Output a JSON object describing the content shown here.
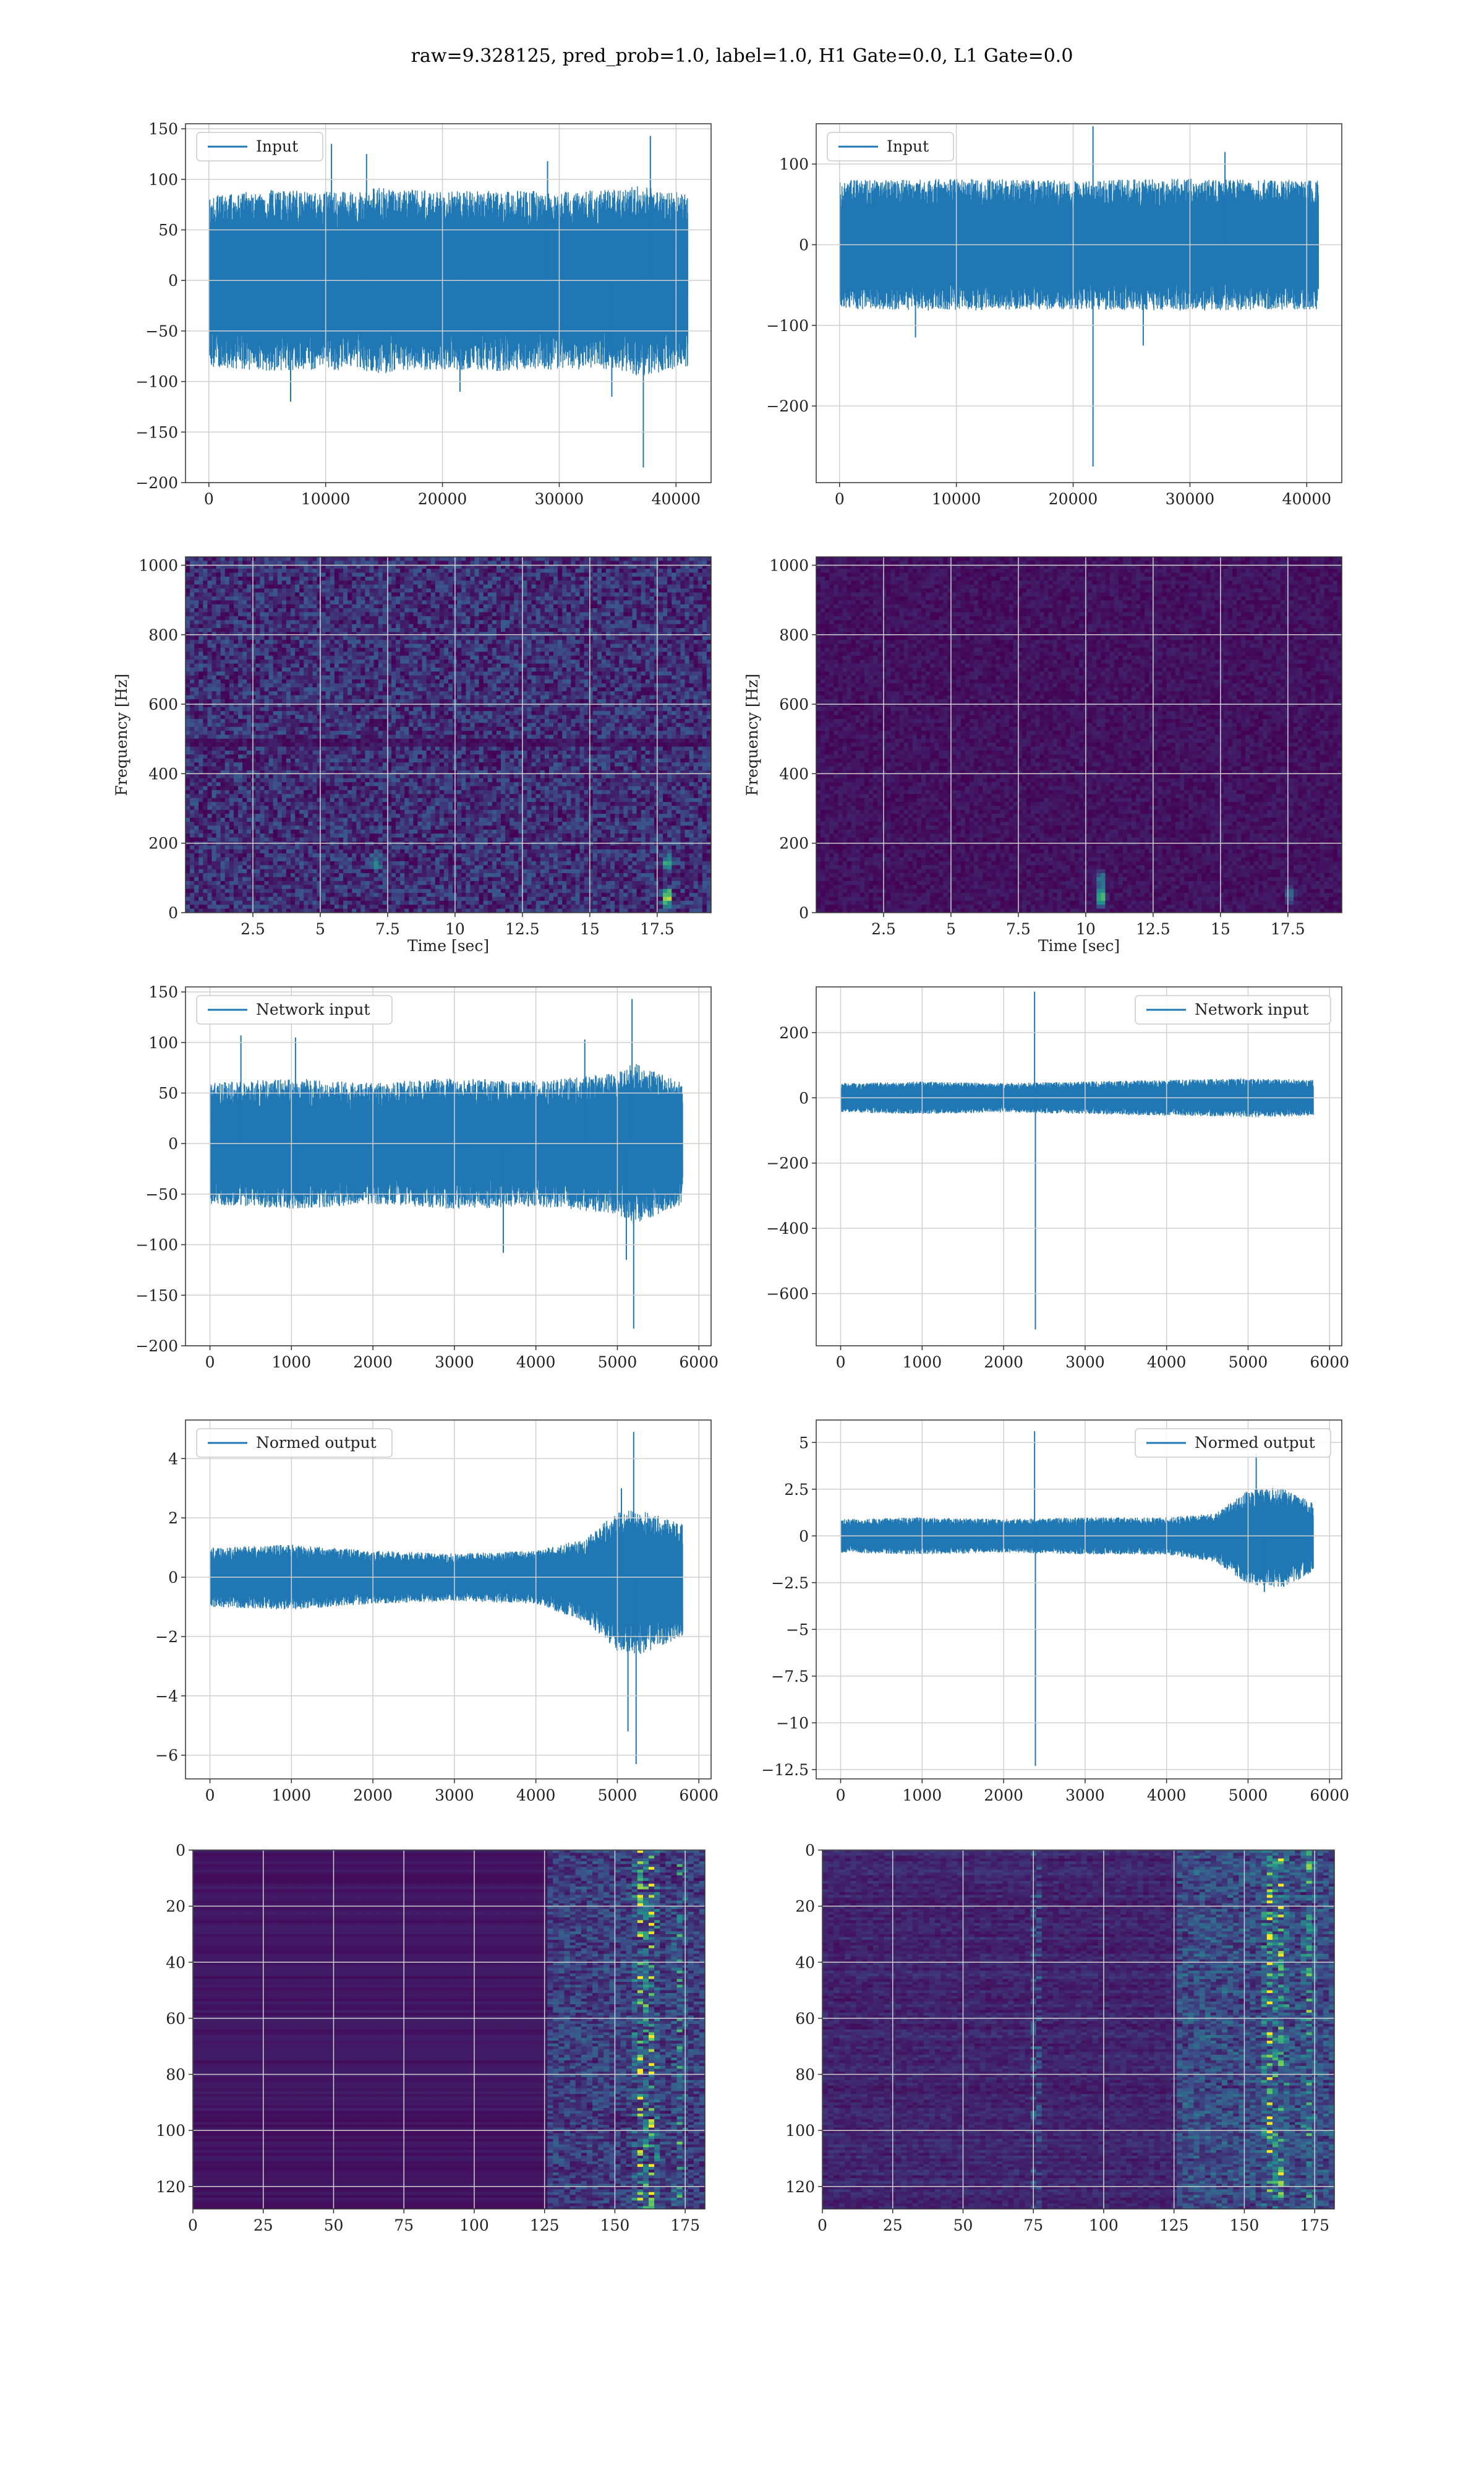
{
  "suptitle": "raw=9.328125, pred_prob=1.0, label=1.0, H1 Gate=0.0, L1 Gate=0.0",
  "colors": {
    "line": "#1f77b4",
    "grid": "#d0d0d0",
    "viridis_low": "#440154",
    "viridis_mid": "#21918c",
    "viridis_high": "#fde725"
  },
  "chart_data": [
    {
      "type": "line",
      "panel": "left-row1",
      "legend": "Input",
      "legend_loc": "upper left",
      "grid": true,
      "xlim": [
        -2000,
        43000
      ],
      "ylim": [
        -200,
        155
      ],
      "xticks": [
        0,
        10000,
        20000,
        30000,
        40000
      ],
      "yticks": [
        -200,
        -150,
        -100,
        -50,
        0,
        50,
        100,
        150
      ],
      "n_samples": 40960,
      "envelope": {
        "x": [
          0,
          5000,
          10000,
          15000,
          20000,
          25000,
          30000,
          35000,
          37000,
          41000
        ],
        "upper": [
          85,
          90,
          88,
          92,
          88,
          90,
          88,
          90,
          95,
          85
        ],
        "lower": [
          -85,
          -90,
          -88,
          -92,
          -88,
          -90,
          -88,
          -90,
          -95,
          -85
        ]
      },
      "spikes": [
        {
          "x": 10500,
          "y": 135
        },
        {
          "x": 13500,
          "y": 125
        },
        {
          "x": 29000,
          "y": 118
        },
        {
          "x": 37800,
          "y": 143
        },
        {
          "x": 37200,
          "y": -185
        },
        {
          "x": 7000,
          "y": -120
        },
        {
          "x": 21500,
          "y": -110
        },
        {
          "x": 34500,
          "y": -115
        }
      ]
    },
    {
      "type": "line",
      "panel": "right-row1",
      "legend": "Input",
      "legend_loc": "upper left",
      "grid": true,
      "xlim": [
        -2000,
        43000
      ],
      "ylim": [
        -295,
        150
      ],
      "xticks": [
        0,
        10000,
        20000,
        30000,
        40000
      ],
      "yticks": [
        -200,
        -100,
        0,
        100
      ],
      "n_samples": 40960,
      "envelope": {
        "x": [
          0,
          10000,
          20000,
          30000,
          41000
        ],
        "upper": [
          80,
          82,
          80,
          82,
          80
        ],
        "lower": [
          -80,
          -82,
          -80,
          -82,
          -80
        ]
      },
      "spikes": [
        {
          "x": 21700,
          "y": 147
        },
        {
          "x": 21700,
          "y": -275
        },
        {
          "x": 6500,
          "y": -115
        },
        {
          "x": 26000,
          "y": -125
        },
        {
          "x": 33000,
          "y": 115
        }
      ]
    },
    {
      "type": "heatmap",
      "panel": "left-row2",
      "xlabel": "Time [sec]",
      "ylabel": "Frequency [Hz]",
      "grid": true,
      "xlim": [
        0,
        19.5
      ],
      "ylim": [
        0,
        1024
      ],
      "xticks": [
        2.5,
        5.0,
        7.5,
        10.0,
        12.5,
        15.0,
        17.5
      ],
      "yticks": [
        0,
        200,
        400,
        600,
        800,
        1000
      ],
      "background_intensity": 0.22,
      "horizontal_band_hz": 500,
      "hot_spots": [
        {
          "t": 17.8,
          "f": 50,
          "intensity": 0.95
        },
        {
          "t": 17.8,
          "f": 150,
          "intensity": 0.6
        },
        {
          "t": 7.0,
          "f": 150,
          "intensity": 0.4
        }
      ]
    },
    {
      "type": "heatmap",
      "panel": "right-row2",
      "xlabel": "Time [sec]",
      "ylabel": "Frequency [Hz]",
      "grid": true,
      "xlim": [
        0,
        19.5
      ],
      "ylim": [
        0,
        1024
      ],
      "xticks": [
        2.5,
        5.0,
        7.5,
        10.0,
        12.5,
        15.0,
        17.5
      ],
      "yticks": [
        0,
        200,
        400,
        600,
        800,
        1000
      ],
      "background_intensity": 0.08,
      "hot_spots": [
        {
          "t": 10.5,
          "f": 50,
          "intensity": 0.9
        },
        {
          "t": 10.5,
          "f": 100,
          "intensity": 0.5
        },
        {
          "t": 17.5,
          "f": 60,
          "intensity": 0.35
        }
      ]
    },
    {
      "type": "line",
      "panel": "left-row3",
      "legend": "Network input",
      "legend_loc": "upper left",
      "grid": true,
      "xlim": [
        -300,
        6150
      ],
      "ylim": [
        -200,
        155
      ],
      "xticks": [
        0,
        1000,
        2000,
        3000,
        4000,
        5000,
        6000
      ],
      "yticks": [
        -200,
        -150,
        -100,
        -50,
        0,
        50,
        100,
        150
      ],
      "n_samples": 5800,
      "envelope": {
        "x": [
          0,
          1000,
          2000,
          3000,
          4000,
          5000,
          5200,
          5800
        ],
        "upper": [
          60,
          65,
          60,
          65,
          62,
          70,
          80,
          60
        ],
        "lower": [
          -60,
          -65,
          -60,
          -65,
          -62,
          -70,
          -80,
          -60
        ]
      },
      "spikes": [
        {
          "x": 380,
          "y": 107
        },
        {
          "x": 1050,
          "y": 105
        },
        {
          "x": 5180,
          "y": 143
        },
        {
          "x": 5200,
          "y": -183
        },
        {
          "x": 5110,
          "y": -115
        },
        {
          "x": 4600,
          "y": 103
        },
        {
          "x": 3600,
          "y": -108
        }
      ]
    },
    {
      "type": "line",
      "panel": "right-row3",
      "legend": "Network input",
      "legend_loc": "upper right",
      "grid": true,
      "xlim": [
        -300,
        6150
      ],
      "ylim": [
        -760,
        340
      ],
      "xticks": [
        0,
        1000,
        2000,
        3000,
        4000,
        5000,
        6000
      ],
      "yticks": [
        -600,
        -400,
        -200,
        0,
        200
      ],
      "n_samples": 5800,
      "envelope": {
        "x": [
          0,
          1000,
          2000,
          3000,
          4000,
          5000,
          5800
        ],
        "upper": [
          45,
          50,
          45,
          50,
          55,
          60,
          55
        ],
        "lower": [
          -45,
          -50,
          -45,
          -50,
          -55,
          -60,
          -55
        ]
      },
      "spikes": [
        {
          "x": 2380,
          "y": 325
        },
        {
          "x": 2390,
          "y": -710
        }
      ]
    },
    {
      "type": "line",
      "panel": "left-row4",
      "legend": "Normed output",
      "legend_loc": "upper left",
      "grid": true,
      "xlim": [
        -300,
        6150
      ],
      "ylim": [
        -6.8,
        5.3
      ],
      "xticks": [
        0,
        1000,
        2000,
        3000,
        4000,
        5000,
        6000
      ],
      "yticks": [
        -6,
        -4,
        -2,
        0,
        2,
        4
      ],
      "n_samples": 5800,
      "envelope": {
        "x": [
          0,
          1000,
          2000,
          3000,
          4000,
          4600,
          5000,
          5300,
          5800
        ],
        "upper": [
          1.0,
          1.1,
          0.9,
          0.8,
          0.9,
          1.3,
          2.2,
          2.3,
          1.8
        ],
        "lower": [
          -1.0,
          -1.1,
          -0.9,
          -0.8,
          -0.9,
          -1.5,
          -2.5,
          -2.6,
          -2.0
        ]
      },
      "spikes": [
        {
          "x": 5200,
          "y": 4.9
        },
        {
          "x": 5230,
          "y": -6.3
        },
        {
          "x": 5130,
          "y": -5.2
        },
        {
          "x": 5050,
          "y": 3.0
        }
      ]
    },
    {
      "type": "line",
      "panel": "right-row4",
      "legend": "Normed output",
      "legend_loc": "upper right",
      "grid": true,
      "xlim": [
        -300,
        6150
      ],
      "ylim": [
        -13.0,
        6.2
      ],
      "xticks": [
        0,
        1000,
        2000,
        3000,
        4000,
        5000,
        6000
      ],
      "yticks": [
        -12.5,
        -10.0,
        -7.5,
        -5.0,
        -2.5,
        0.0,
        2.5,
        5.0
      ],
      "n_samples": 5800,
      "envelope": {
        "x": [
          0,
          1000,
          2000,
          3000,
          4000,
          4600,
          5000,
          5400,
          5800
        ],
        "upper": [
          0.9,
          1.0,
          0.9,
          1.0,
          1.0,
          1.2,
          2.5,
          2.6,
          1.8
        ],
        "lower": [
          -0.9,
          -1.0,
          -0.9,
          -1.0,
          -1.0,
          -1.4,
          -2.6,
          -2.8,
          -2.0
        ]
      },
      "spikes": [
        {
          "x": 2380,
          "y": 5.6
        },
        {
          "x": 2390,
          "y": -12.3
        },
        {
          "x": 5100,
          "y": 4.4
        },
        {
          "x": 5200,
          "y": -3.0
        }
      ]
    },
    {
      "type": "heatmap",
      "panel": "left-row5",
      "grid": true,
      "xlim": [
        0,
        182
      ],
      "ylim": [
        128,
        0
      ],
      "xticks": [
        0,
        25,
        50,
        75,
        100,
        125,
        150,
        175
      ],
      "yticks": [
        0,
        20,
        40,
        60,
        80,
        100,
        120
      ],
      "rows": 128,
      "cols": 182,
      "activity_start_col": 125,
      "hot_columns": [
        {
          "col": 158,
          "intensity": 1.0
        },
        {
          "col": 162,
          "intensity": 0.9
        },
        {
          "col": 172,
          "intensity": 0.5
        }
      ]
    },
    {
      "type": "heatmap",
      "panel": "right-row5",
      "grid": true,
      "xlim": [
        0,
        182
      ],
      "ylim": [
        128,
        0
      ],
      "xticks": [
        0,
        25,
        50,
        75,
        100,
        125,
        150,
        175
      ],
      "yticks": [
        0,
        20,
        40,
        60,
        80,
        100,
        120
      ],
      "rows": 128,
      "cols": 182,
      "activity_start_col": 125,
      "early_activity": true,
      "hot_columns": [
        {
          "col": 158,
          "intensity": 1.0
        },
        {
          "col": 162,
          "intensity": 0.8
        },
        {
          "col": 75,
          "intensity": 0.35
        },
        {
          "col": 172,
          "intensity": 0.5
        }
      ]
    }
  ]
}
